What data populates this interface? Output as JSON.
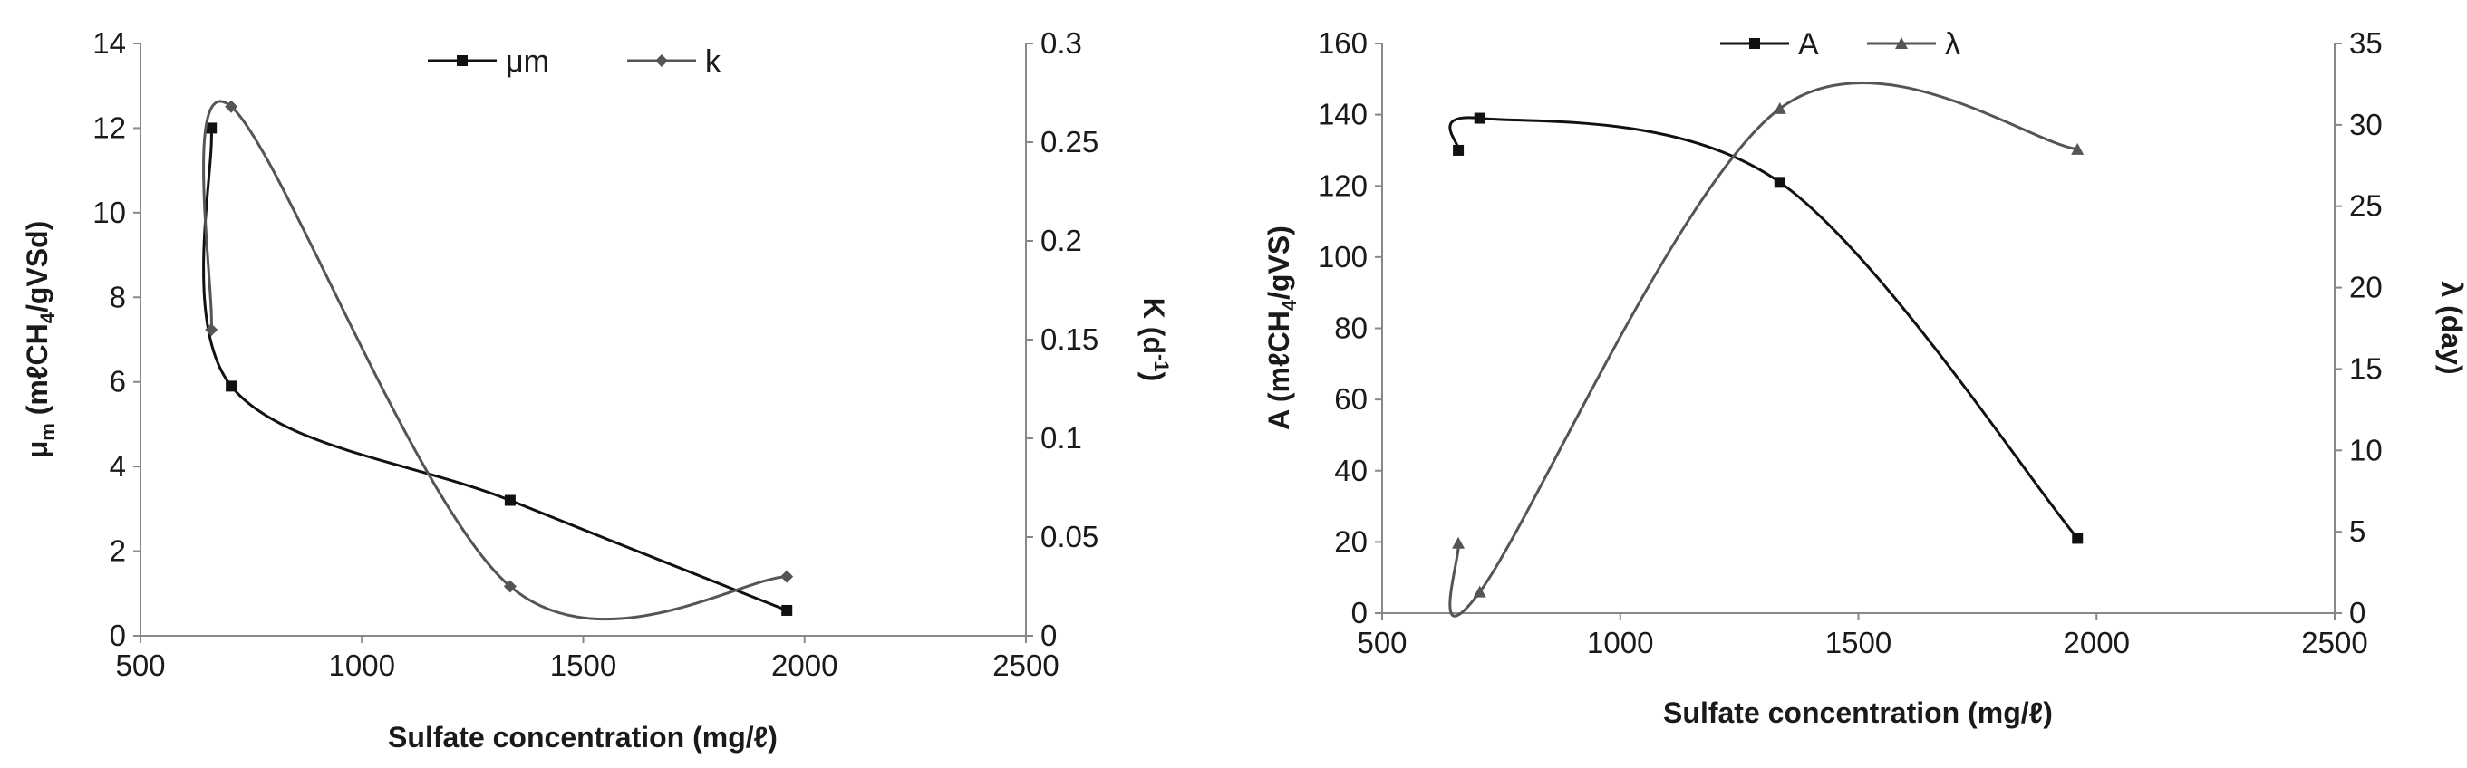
{
  "chart_data": [
    {
      "type": "line",
      "xlabel": "Sulfate concentration (mg/ℓ)",
      "ylabel": "μm (mℓCH4/gVSd)",
      "y2label": "K (d-1)",
      "xlim": [
        500,
        2500
      ],
      "xticks": [
        500,
        1000,
        1500,
        2000,
        2500
      ],
      "ylim": [
        0,
        14
      ],
      "yticks": [
        0,
        2,
        4,
        6,
        8,
        10,
        12,
        14
      ],
      "y2lim": [
        0,
        0.3
      ],
      "y2ticks": [
        0,
        0.05,
        0.1,
        0.15,
        0.2,
        0.25,
        0.3
      ],
      "legend_position": "top",
      "series": [
        {
          "name": "μm",
          "axis": "left",
          "marker": "square",
          "color": "#111111",
          "x": [
            660,
            705,
            1335,
            1960
          ],
          "y": [
            12.0,
            5.9,
            3.2,
            0.6
          ]
        },
        {
          "name": "k",
          "axis": "right",
          "marker": "diamond",
          "color": "#555555",
          "x": [
            660,
            705,
            1335,
            1960
          ],
          "y": [
            0.155,
            0.268,
            0.025,
            0.03
          ]
        }
      ]
    },
    {
      "type": "line",
      "xlabel": "Sulfate concentration (mg/ℓ)",
      "ylabel": "A (mℓCH4/gVS)",
      "y2label": "λ (day)",
      "xlim": [
        500,
        2500
      ],
      "xticks": [
        500,
        1000,
        1500,
        2000,
        2500
      ],
      "ylim": [
        0,
        160
      ],
      "yticks": [
        0,
        20,
        40,
        60,
        80,
        100,
        120,
        140,
        160
      ],
      "y2lim": [
        0,
        35
      ],
      "y2ticks": [
        0,
        5,
        10,
        15,
        20,
        25,
        30,
        35
      ],
      "legend_position": "top",
      "series": [
        {
          "name": "A",
          "axis": "left",
          "marker": "square",
          "color": "#111111",
          "x": [
            660,
            705,
            1335,
            1960
          ],
          "y": [
            130,
            139,
            121,
            21
          ]
        },
        {
          "name": "λ",
          "axis": "right",
          "marker": "triangle",
          "color": "#555555",
          "x": [
            660,
            705,
            1335,
            1960
          ],
          "y": [
            4.3,
            1.3,
            31.0,
            28.5
          ]
        }
      ]
    }
  ]
}
